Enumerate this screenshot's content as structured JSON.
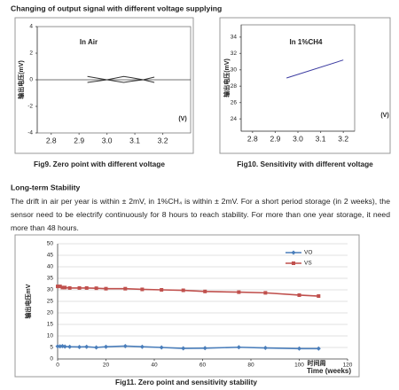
{
  "heading": "Changing of output signal with different voltage supplying",
  "chart_data": [
    {
      "type": "line",
      "annotation": "In Air",
      "y_label": "输出电压(mV)",
      "x_label": "(V)",
      "x": [
        2.93,
        3.0,
        3.06,
        3.09,
        3.13,
        3.17
      ],
      "series": [
        {
          "color": "#333333",
          "values": [
            0.25,
            0,
            -0.2,
            -0.1,
            0,
            0.2
          ]
        },
        {
          "color": "#333333",
          "values": [
            -0.2,
            0,
            0.25,
            0.15,
            0,
            -0.2
          ]
        }
      ],
      "xlim": [
        2.75,
        3.3
      ],
      "ylim": [
        -4,
        4
      ],
      "xticks": [
        2.8,
        2.9,
        {
          "value": 3,
          "label": "3.0"
        },
        3.1,
        3.2
      ],
      "yticks": [
        -4,
        -2,
        0,
        2,
        4
      ],
      "caption": "Fig9. Zero point with different voltage"
    },
    {
      "type": "line",
      "annotation": "In 1%CH4",
      "y_label": "输出电压(mV)",
      "x_label": "(V)",
      "x": [
        2.95,
        3.2
      ],
      "series": [
        {
          "color": "#3a3aa0",
          "values": [
            29,
            31.2
          ]
        }
      ],
      "xlim": [
        2.75,
        3.25
      ],
      "ylim": [
        22.5,
        35.5
      ],
      "xticks": [
        2.8,
        2.9,
        {
          "value": 3,
          "label": "3.0"
        },
        3.1,
        3.2
      ],
      "yticks": [
        24,
        26,
        28,
        30,
        32,
        34
      ],
      "caption": "Fig10. Sensitivity with different voltage"
    },
    {
      "type": "line",
      "y_label": "输出电压mV",
      "x_label": "时间周",
      "x_title": "Time (weeks)",
      "grid": true,
      "legend": "top-right",
      "x": [
        0,
        1,
        2,
        3,
        5,
        9,
        12,
        16,
        20,
        28,
        35,
        43,
        52,
        61,
        75,
        86,
        100,
        108
      ],
      "series": [
        {
          "name": "VO",
          "color": "#4a7ebb",
          "marker": "diamond",
          "values": [
            5.5,
            5.5,
            5.6,
            5.4,
            5.3,
            5.2,
            5.3,
            5.0,
            5.3,
            5.6,
            5.3,
            5.0,
            4.6,
            4.7,
            5.1,
            4.8,
            4.5,
            4.5
          ]
        },
        {
          "name": "VS",
          "color": "#c0504d",
          "marker": "square",
          "values": [
            31.5,
            31.5,
            31,
            31,
            30.8,
            30.8,
            30.8,
            30.7,
            30.5,
            30.5,
            30.2,
            30,
            29.8,
            29.3,
            29,
            28.7,
            27.7,
            27.3
          ]
        }
      ],
      "xlim": [
        0,
        120
      ],
      "ylim": [
        0,
        50
      ],
      "xticks": [
        0,
        20,
        40,
        60,
        80,
        100,
        120
      ],
      "yticks": [
        0,
        5,
        10,
        15,
        20,
        25,
        30,
        35,
        40,
        45,
        50
      ],
      "caption": "Fig11. Zero point and sensitivity stability"
    }
  ],
  "section_title": "Long-term Stability",
  "paragraph": "The drift in air per year is within ± 2mV, in 1%CH₄ is within ± 2mV. For a short period storage (in 2 weeks), the sensor need to be electrify continuously for 8 hours to reach stability. For more than one year storage, it need more than 48 hours."
}
